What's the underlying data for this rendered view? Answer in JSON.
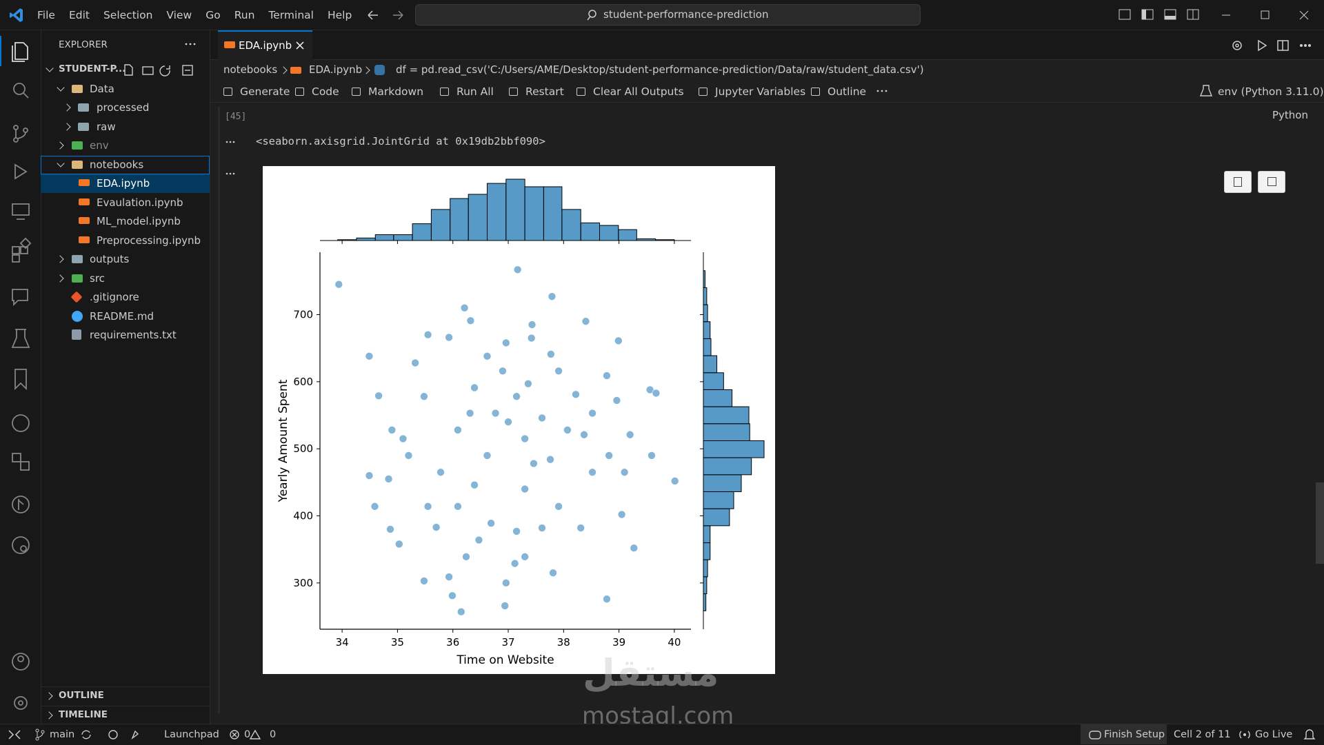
{
  "title_bar": {
    "menu": [
      "File",
      "Edit",
      "Selection",
      "View",
      "Go",
      "Run",
      "Terminal",
      "Help"
    ],
    "search": "student-performance-prediction"
  },
  "explorer": {
    "title": "EXPLORER",
    "root": "STUDENT-P...",
    "tree": [
      {
        "label": "Data",
        "children": [
          {
            "label": "processed"
          },
          {
            "label": "raw"
          }
        ]
      },
      {
        "label": "env"
      },
      {
        "label": "notebooks",
        "children": [
          {
            "label": "EDA.ipynb"
          },
          {
            "label": "Evaulation.ipynb"
          },
          {
            "label": "ML_model.ipynb"
          },
          {
            "label": "Preprocessing.ipynb"
          }
        ]
      },
      {
        "label": "outputs"
      },
      {
        "label": "src"
      },
      {
        "label": ".gitignore"
      },
      {
        "label": "README.md"
      },
      {
        "label": "requirements.txt"
      }
    ],
    "sections": [
      "OUTLINE",
      "TIMELINE"
    ]
  },
  "editor": {
    "tab": "EDA.ipynb",
    "breadcrumb": [
      "notebooks",
      "EDA.ipynb",
      "df = pd.read_csv('C:/Users/AME/Desktop/student-performance-prediction/Data/raw/student_data.csv')"
    ],
    "toolbar": [
      "Generate",
      "Code",
      "Markdown",
      "Run All",
      "Restart",
      "Clear All Outputs",
      "Jupyter Variables",
      "Outline"
    ],
    "kernel": "env (Python 3.11.0)",
    "cell": {
      "execution_count": "[45]",
      "language": "Python",
      "output_text": "<seaborn.axisgrid.JointGrid at 0x19db2bbf090>"
    }
  },
  "chart_data": {
    "type": "scatter",
    "x_label": "Time on Website",
    "y_label": "Yearly Amount Spent",
    "color": "#1f77b4",
    "xlim": [
      33.6,
      40.3
    ],
    "ylim": [
      231,
      793
    ],
    "xticks": [
      34,
      35,
      36,
      37,
      38,
      39,
      40
    ],
    "yticks": [
      300,
      400,
      500,
      600,
      700
    ],
    "x": [
      33.94,
      34.49,
      37.17,
      37.79,
      36.21,
      36.32,
      37.43,
      38.4,
      38.99,
      38.78,
      34.66,
      34.49,
      34.59,
      34.84,
      35.03,
      35.48,
      35.93,
      35.99,
      36.15,
      36.94,
      36.96,
      37.81,
      38.78,
      39.27,
      40.01,
      39.59,
      39.56,
      39.67,
      34.9,
      34.87,
      37.3,
      37.12,
      38.31,
      39.05,
      39.1,
      38.96,
      38.52,
      35.48,
      35.55,
      35.93,
      36.96,
      37.42,
      37.77,
      36.62,
      35.32,
      36.39,
      37.15,
      37.91,
      38.22,
      37.0,
      37.3,
      36.62,
      36.09,
      37.76,
      38.37,
      35.78,
      36.39,
      37.3,
      37.91,
      36.09,
      36.69,
      37.15,
      35.7,
      35.2,
      35.1,
      38.52,
      38.82,
      39.2,
      35.55,
      37.61,
      36.77,
      36.31,
      37.36,
      36.9,
      38.07,
      37.46,
      36.47,
      37.61,
      36.24
    ],
    "values": [
      745,
      638,
      767,
      727,
      710,
      691,
      685,
      690,
      661,
      609,
      579,
      460,
      414,
      455,
      358,
      303,
      309,
      281,
      257,
      266,
      300,
      315,
      276,
      352,
      452,
      490,
      588,
      583,
      528,
      380,
      339,
      329,
      382,
      402,
      465,
      572,
      553,
      578,
      670,
      666,
      658,
      665,
      641,
      638,
      628,
      591,
      578,
      616,
      581,
      540,
      515,
      490,
      528,
      484,
      521,
      465,
      446,
      440,
      414,
      414,
      389,
      377,
      383,
      490,
      515,
      465,
      490,
      521,
      414,
      546,
      553,
      553,
      597,
      616,
      528,
      478,
      364,
      382,
      339
    ],
    "x_hist": {
      "bins": [
        33.92,
        34.26,
        34.6,
        34.93,
        35.27,
        35.61,
        35.95,
        36.28,
        36.62,
        36.96,
        37.3,
        37.64,
        37.97,
        38.31,
        38.65,
        38.99,
        39.32,
        39.66,
        40.0
      ],
      "counts": [
        1,
        3,
        7,
        7,
        20,
        37,
        50,
        55,
        68,
        73,
        64,
        64,
        37,
        21,
        18,
        13,
        2,
        1
      ]
    },
    "y_hist": {
      "bins": [
        258.5,
        283.9,
        309.2,
        334.6,
        359.9,
        385.3,
        410.6,
        436.0,
        461.3,
        486.7,
        512.0,
        537.4,
        562.7,
        588.1,
        613.4,
        638.8,
        664.1,
        689.5,
        714.8,
        740.2,
        765.5
      ],
      "counts": [
        3,
        4,
        5,
        8,
        8,
        31,
        36,
        45,
        57,
        72,
        55,
        54,
        34,
        24,
        16,
        9,
        8,
        5,
        4,
        2
      ]
    }
  },
  "watermark": {
    "logo": "مستقل",
    "text": "mostaql.com"
  },
  "status_bar": {
    "branch": "main",
    "launchpad": "Launchpad",
    "errors": 0,
    "warnings": 0,
    "finish_setup": "Finish Setup",
    "cell_position": "Cell 2 of 11",
    "go_live": "Go Live"
  }
}
